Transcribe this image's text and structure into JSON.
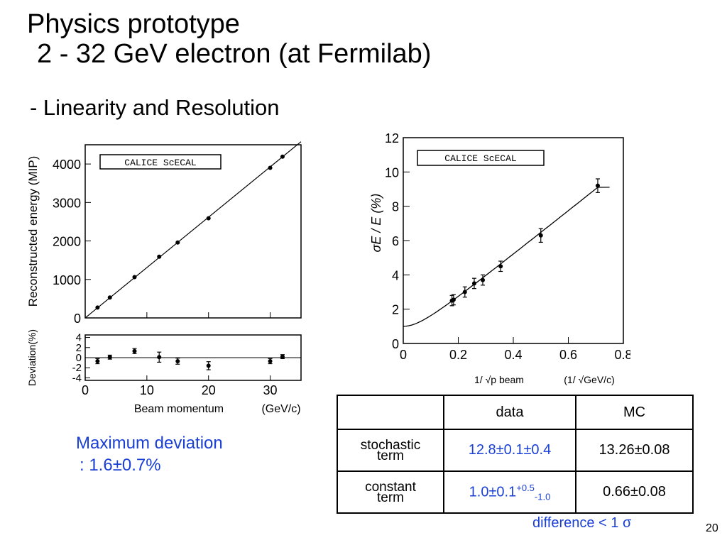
{
  "slide": {
    "title_line1": "Physics prototype",
    "title_line2": "2 - 32 GeV electron (at Fermilab)",
    "subtitle": "- Linearity and Resolution",
    "max_deviation_line1": "Maximum deviation",
    "max_deviation_line2": ": 1.6±0.7%",
    "difference_note": "difference < 1 σ",
    "page_number": "20"
  },
  "table": {
    "header": [
      "",
      "data",
      "MC"
    ],
    "rows": [
      {
        "label_line1": "stochastic",
        "label_line2": "term",
        "data": "12.8±0.1±0.4",
        "mc": "13.26±0.08"
      },
      {
        "label_line1": "constant",
        "label_line2": "term",
        "data_main": "1.0±0.1",
        "data_sup": "+0.5",
        "data_sub": "-1.0",
        "mc": "0.66±0.08"
      }
    ]
  },
  "chart_data": [
    {
      "type": "scatter",
      "title": "",
      "legend_box": "CALICE ScECAL",
      "xlabel": "Beam momentum",
      "xunit": "(GeV/c)",
      "ylabel": "Reconstructed energy (MIP)",
      "xlim": [
        0,
        35
      ],
      "ylim": [
        0,
        4500
      ],
      "xticks": [
        0,
        10,
        20,
        30
      ],
      "yticks": [
        0,
        1000,
        2000,
        3000,
        4000
      ],
      "fit_line": {
        "x": [
          0,
          35
        ],
        "y": [
          0,
          4580
        ]
      },
      "x": [
        2,
        4,
        8,
        12,
        15,
        20,
        30,
        32
      ],
      "y": [
        270,
        530,
        1060,
        1590,
        1960,
        2590,
        3900,
        4190
      ]
    },
    {
      "type": "scatter",
      "title": "",
      "ylabel": "Deviation(%)",
      "xlim": [
        0,
        35
      ],
      "ylim": [
        -4.5,
        4.5
      ],
      "xticks": [
        0,
        10,
        20,
        30
      ],
      "yticks": [
        -4,
        -2,
        0,
        2,
        4
      ],
      "x": [
        2,
        4,
        8,
        12,
        15,
        20,
        30,
        32
      ],
      "y": [
        -0.7,
        0.1,
        1.3,
        0.1,
        -0.7,
        -1.6,
        -0.7,
        0.2
      ],
      "err": [
        0.5,
        0.4,
        0.5,
        1.0,
        0.6,
        0.8,
        0.5,
        0.4
      ]
    },
    {
      "type": "scatter",
      "title": "",
      "legend_box": "CALICE ScECAL",
      "ylabel": "σE / E (%)",
      "xlabel": "1/ √p beam",
      "xunit": "(1/ √GeV/c)",
      "xlim": [
        0,
        0.8
      ],
      "ylim": [
        0,
        12
      ],
      "xticks": [
        0,
        0.2,
        0.4,
        0.6,
        0.8
      ],
      "yticks": [
        0,
        2,
        4,
        6,
        8,
        10,
        12
      ],
      "x": [
        0.177,
        0.183,
        0.224,
        0.258,
        0.289,
        0.354,
        0.5,
        0.707
      ],
      "y": [
        2.5,
        2.55,
        3.0,
        3.5,
        3.7,
        4.5,
        6.3,
        9.2
      ],
      "err": [
        0.3,
        0.3,
        0.3,
        0.3,
        0.3,
        0.3,
        0.4,
        0.4
      ],
      "fit": {
        "stochastic": 12.8,
        "constant": 1.0
      }
    }
  ]
}
